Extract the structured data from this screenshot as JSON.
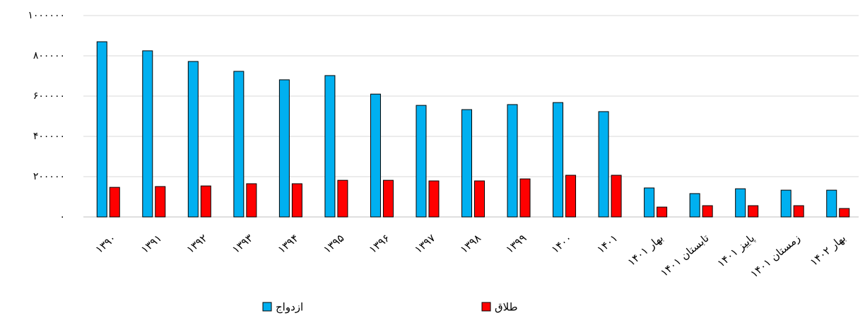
{
  "chart_data": {
    "type": "bar",
    "categories": [
      "۱۳۹۰",
      "۱۳۹۱",
      "۱۳۹۲",
      "۱۳۹۳",
      "۱۳۹۴",
      "۱۳۹۵",
      "۱۳۹۶",
      "۱۳۹۷",
      "۱۳۹۸",
      "۱۳۹۹",
      "۱۴۰۰",
      "۱۴۰۱",
      "بهار ۱۴۰۱",
      "تابستان ۱۴۰۱",
      "پاییز ۱۴۰۱",
      "زمستان ۱۴۰۱",
      "بهار ۱۴۰۲"
    ],
    "series": [
      {
        "name": "ازدواج",
        "color": "#00b0f0",
        "values": [
          870000,
          825000,
          772000,
          723000,
          681000,
          702000,
          610000,
          554000,
          533000,
          558000,
          568000,
          523000,
          144000,
          116000,
          140000,
          133000,
          133000
        ]
      },
      {
        "name": "طلاق",
        "color": "#ff0000",
        "values": [
          147000,
          151000,
          154000,
          165000,
          165000,
          182000,
          182000,
          179000,
          179000,
          189000,
          207000,
          207000,
          49000,
          56000,
          56000,
          56000,
          42000
        ]
      }
    ],
    "ylim": [
      0,
      1000000
    ],
    "yticks": [
      {
        "value": 0,
        "label": "۰"
      },
      {
        "value": 200000,
        "label": "۲۰۰۰۰۰"
      },
      {
        "value": 400000,
        "label": "۴۰۰۰۰۰"
      },
      {
        "value": 600000,
        "label": "۶۰۰۰۰۰"
      },
      {
        "value": 800000,
        "label": "۸۰۰۰۰۰"
      },
      {
        "value": 1000000,
        "label": "۱۰۰۰۰۰۰"
      }
    ],
    "grid": true,
    "legend_position": "bottom"
  }
}
